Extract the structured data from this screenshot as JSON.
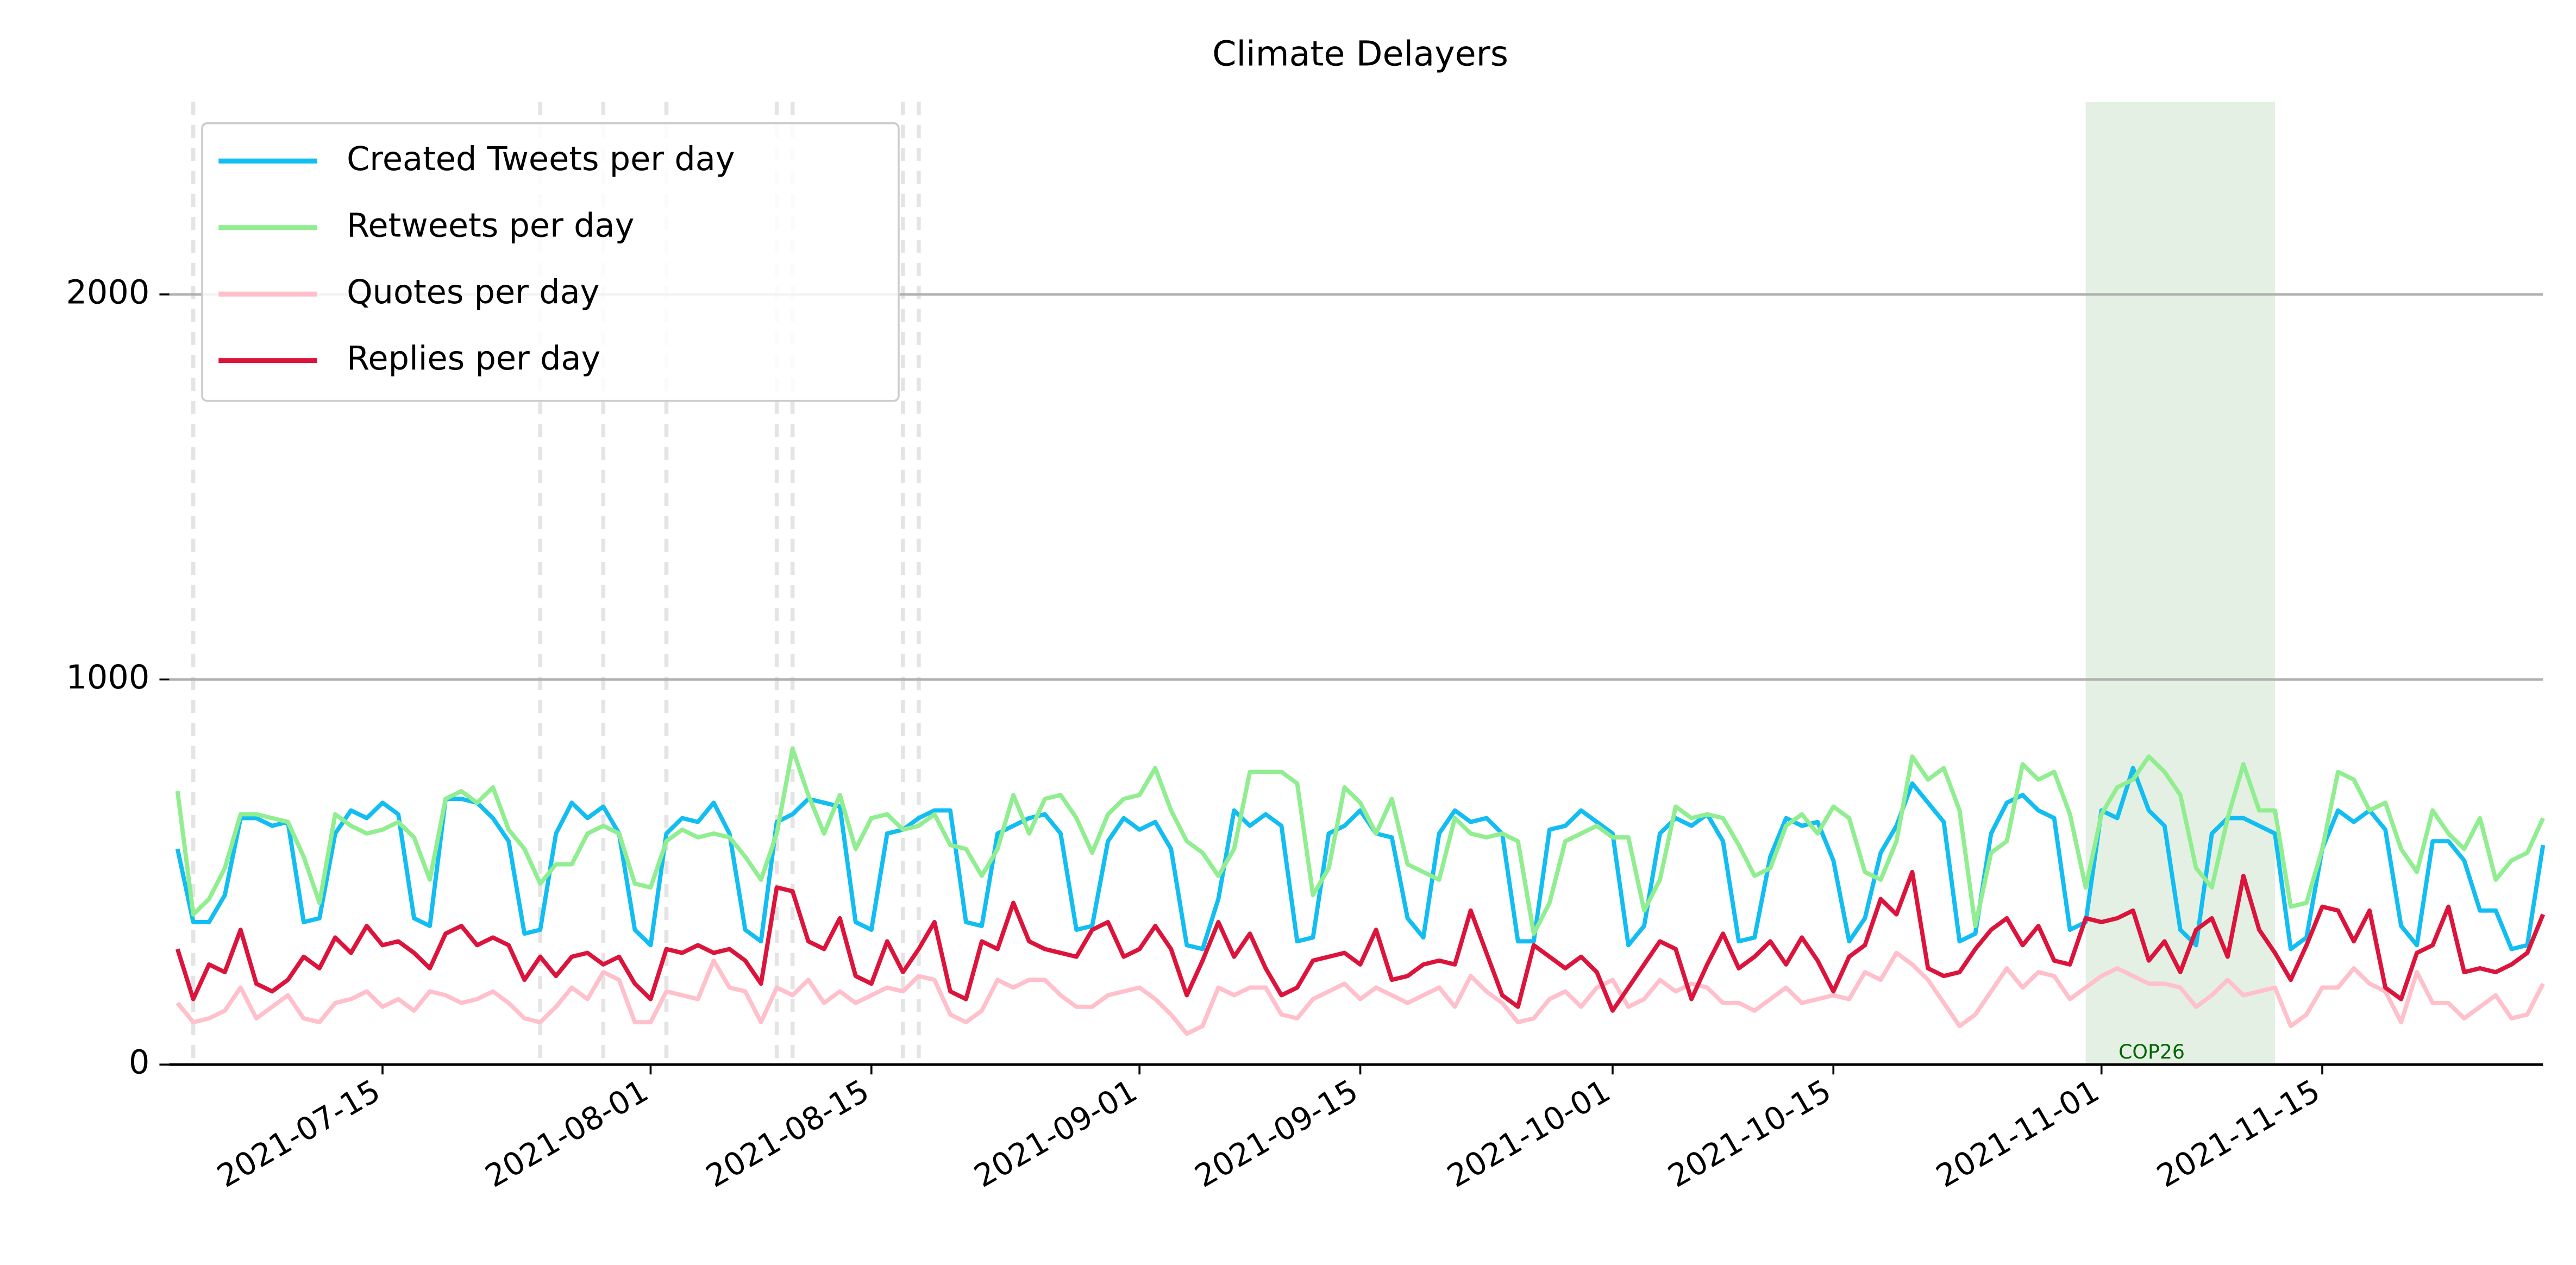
{
  "chart_data": {
    "type": "line",
    "title": "Climate Delayers",
    "x": [
      "2021-07-02",
      "2021-07-03",
      "2021-07-04",
      "2021-07-05",
      "2021-07-06",
      "2021-07-07",
      "2021-07-08",
      "2021-07-09",
      "2021-07-10",
      "2021-07-11",
      "2021-07-12",
      "2021-07-13",
      "2021-07-14",
      "2021-07-15",
      "2021-07-16",
      "2021-07-17",
      "2021-07-18",
      "2021-07-19",
      "2021-07-20",
      "2021-07-21",
      "2021-07-22",
      "2021-07-23",
      "2021-07-24",
      "2021-07-25",
      "2021-07-26",
      "2021-07-27",
      "2021-07-28",
      "2021-07-29",
      "2021-07-30",
      "2021-07-31",
      "2021-08-01",
      "2021-08-02",
      "2021-08-03",
      "2021-08-04",
      "2021-08-05",
      "2021-08-06",
      "2021-08-07",
      "2021-08-08",
      "2021-08-09",
      "2021-08-10",
      "2021-08-11",
      "2021-08-12",
      "2021-08-13",
      "2021-08-14",
      "2021-08-15",
      "2021-08-16",
      "2021-08-17",
      "2021-08-18",
      "2021-08-19",
      "2021-08-20",
      "2021-08-21",
      "2021-08-22",
      "2021-08-23",
      "2021-08-24",
      "2021-08-25",
      "2021-08-26",
      "2021-08-27",
      "2021-08-28",
      "2021-08-29",
      "2021-08-30",
      "2021-08-31",
      "2021-09-01",
      "2021-09-02",
      "2021-09-03",
      "2021-09-04",
      "2021-09-05",
      "2021-09-06",
      "2021-09-07",
      "2021-09-08",
      "2021-09-09",
      "2021-09-10",
      "2021-09-11",
      "2021-09-12",
      "2021-09-13",
      "2021-09-14",
      "2021-09-15",
      "2021-09-16",
      "2021-09-17",
      "2021-09-18",
      "2021-09-19",
      "2021-09-20",
      "2021-09-21",
      "2021-09-22",
      "2021-09-23",
      "2021-09-24",
      "2021-09-25",
      "2021-09-26",
      "2021-09-27",
      "2021-09-28",
      "2021-09-29",
      "2021-09-30",
      "2021-10-01",
      "2021-10-02",
      "2021-10-03",
      "2021-10-04",
      "2021-10-05",
      "2021-10-06",
      "2021-10-07",
      "2021-10-08",
      "2021-10-09",
      "2021-10-10",
      "2021-10-11",
      "2021-10-12",
      "2021-10-13",
      "2021-10-14",
      "2021-10-15",
      "2021-10-16",
      "2021-10-17",
      "2021-10-18",
      "2021-10-19",
      "2021-10-20",
      "2021-10-21",
      "2021-10-22",
      "2021-10-23",
      "2021-10-24",
      "2021-10-25",
      "2021-10-26",
      "2021-10-27",
      "2021-10-28",
      "2021-10-29",
      "2021-10-30",
      "2021-10-31",
      "2021-11-01",
      "2021-11-02",
      "2021-11-03",
      "2021-11-04",
      "2021-11-05",
      "2021-11-06",
      "2021-11-07",
      "2021-11-08",
      "2021-11-09",
      "2021-11-10",
      "2021-11-11",
      "2021-11-12",
      "2021-11-13",
      "2021-11-14",
      "2021-11-15",
      "2021-11-16",
      "2021-11-17",
      "2021-11-18",
      "2021-11-19",
      "2021-11-20",
      "2021-11-21",
      "2021-11-22",
      "2021-11-23",
      "2021-11-24",
      "2021-11-25",
      "2021-11-26",
      "2021-11-27",
      "2021-11-28",
      "2021-11-29"
    ],
    "series": [
      {
        "name": "Created Tweets per day",
        "color": "#12bdf2",
        "values": [
          560,
          370,
          370,
          440,
          640,
          640,
          620,
          630,
          370,
          380,
          600,
          660,
          640,
          680,
          650,
          380,
          360,
          690,
          690,
          680,
          640,
          580,
          340,
          350,
          600,
          680,
          640,
          670,
          600,
          350,
          310,
          600,
          640,
          630,
          680,
          600,
          350,
          320,
          630,
          650,
          690,
          680,
          670,
          370,
          350,
          600,
          610,
          640,
          660,
          660,
          370,
          360,
          600,
          620,
          640,
          650,
          600,
          350,
          360,
          580,
          640,
          610,
          630,
          560,
          310,
          300,
          430,
          660,
          620,
          650,
          620,
          320,
          330,
          600,
          620,
          660,
          600,
          590,
          380,
          330,
          600,
          660,
          630,
          640,
          600,
          320,
          320,
          610,
          620,
          660,
          630,
          600,
          310,
          360,
          600,
          640,
          620,
          650,
          580,
          320,
          330,
          540,
          640,
          620,
          630,
          530,
          320,
          380,
          550,
          620,
          730,
          680,
          630,
          320,
          340,
          600,
          680,
          700,
          660,
          640,
          350,
          370,
          660,
          640,
          770,
          660,
          620,
          350,
          310,
          600,
          640,
          640,
          620,
          600,
          300,
          330,
          560,
          660,
          630,
          660,
          610,
          360,
          310,
          580,
          580,
          530,
          400,
          400,
          300,
          310,
          570
        ]
      },
      {
        "name": "Retweets per day",
        "color": "#90ee90",
        "values": [
          710,
          390,
          430,
          510,
          650,
          650,
          640,
          630,
          540,
          420,
          650,
          620,
          600,
          610,
          630,
          590,
          480,
          690,
          710,
          680,
          720,
          610,
          560,
          470,
          520,
          520,
          600,
          620,
          600,
          470,
          460,
          580,
          610,
          590,
          600,
          590,
          540,
          480,
          600,
          820,
          700,
          600,
          700,
          560,
          640,
          650,
          610,
          620,
          650,
          570,
          560,
          490,
          560,
          700,
          600,
          690,
          700,
          640,
          550,
          650,
          690,
          700,
          770,
          660,
          580,
          550,
          490,
          560,
          760,
          760,
          760,
          730,
          440,
          510,
          720,
          680,
          600,
          690,
          520,
          500,
          480,
          640,
          600,
          590,
          600,
          580,
          340,
          420,
          580,
          600,
          620,
          590,
          590,
          400,
          480,
          670,
          640,
          650,
          640,
          570,
          490,
          510,
          620,
          650,
          600,
          670,
          640,
          500,
          480,
          580,
          800,
          740,
          770,
          660,
          360,
          550,
          580,
          780,
          740,
          760,
          650,
          460,
          650,
          720,
          740,
          800,
          760,
          700,
          510,
          460,
          640,
          780,
          660,
          660,
          410,
          420,
          560,
          760,
          740,
          660,
          680,
          560,
          500,
          660,
          600,
          560,
          640,
          480,
          530,
          550,
          640
        ]
      },
      {
        "name": "Quotes per day",
        "color": "#ffc0cb",
        "values": [
          160,
          110,
          120,
          140,
          200,
          120,
          150,
          180,
          120,
          110,
          160,
          170,
          190,
          150,
          170,
          140,
          190,
          180,
          160,
          170,
          190,
          160,
          120,
          110,
          150,
          200,
          170,
          240,
          220,
          110,
          110,
          190,
          180,
          170,
          270,
          200,
          190,
          110,
          200,
          180,
          220,
          160,
          190,
          160,
          180,
          200,
          190,
          230,
          220,
          130,
          110,
          140,
          220,
          200,
          220,
          220,
          180,
          150,
          150,
          180,
          190,
          200,
          170,
          130,
          80,
          100,
          200,
          180,
          200,
          200,
          130,
          120,
          170,
          190,
          210,
          170,
          200,
          180,
          160,
          180,
          200,
          150,
          230,
          190,
          160,
          110,
          120,
          170,
          190,
          150,
          200,
          220,
          150,
          170,
          220,
          190,
          210,
          200,
          160,
          160,
          140,
          170,
          200,
          160,
          170,
          180,
          170,
          240,
          220,
          290,
          260,
          220,
          160,
          100,
          130,
          190,
          250,
          200,
          240,
          230,
          170,
          200,
          230,
          250,
          230,
          210,
          210,
          200,
          150,
          180,
          220,
          180,
          190,
          200,
          100,
          130,
          200,
          200,
          250,
          210,
          190,
          110,
          240,
          160,
          160,
          120,
          150,
          180,
          120,
          130,
          210
        ]
      },
      {
        "name": "Replies per day",
        "color": "#dc143c",
        "values": [
          300,
          170,
          260,
          240,
          350,
          210,
          190,
          220,
          280,
          250,
          330,
          290,
          360,
          310,
          320,
          290,
          250,
          340,
          360,
          310,
          330,
          310,
          220,
          280,
          230,
          280,
          290,
          260,
          280,
          210,
          170,
          300,
          290,
          310,
          290,
          300,
          270,
          210,
          460,
          450,
          320,
          300,
          380,
          230,
          210,
          320,
          240,
          300,
          370,
          190,
          170,
          320,
          300,
          420,
          320,
          300,
          290,
          280,
          350,
          370,
          280,
          300,
          360,
          300,
          180,
          270,
          370,
          280,
          340,
          250,
          180,
          200,
          270,
          280,
          290,
          260,
          350,
          220,
          230,
          260,
          270,
          260,
          400,
          290,
          180,
          150,
          310,
          280,
          250,
          280,
          240,
          140,
          200,
          260,
          320,
          300,
          170,
          260,
          340,
          250,
          280,
          320,
          260,
          330,
          270,
          190,
          280,
          310,
          430,
          390,
          500,
          250,
          230,
          240,
          300,
          350,
          380,
          310,
          360,
          270,
          260,
          380,
          370,
          380,
          400,
          270,
          320,
          240,
          350,
          380,
          280,
          490,
          350,
          290,
          220,
          310,
          410,
          400,
          320,
          400,
          200,
          170,
          290,
          310,
          410,
          240,
          250,
          240,
          260,
          290,
          390
        ]
      }
    ],
    "xlim": [
      "2021-07-02",
      "2021-11-29"
    ],
    "xticks": [
      "2021-07-15",
      "2021-08-01",
      "2021-08-15",
      "2021-09-01",
      "2021-09-15",
      "2021-10-01",
      "2021-10-15",
      "2021-11-01",
      "2021-11-15"
    ],
    "ylim": [
      0,
      2500
    ],
    "yticks": [
      0,
      1000,
      2000
    ],
    "grid": true,
    "legend": "upper left",
    "spans": [
      {
        "start": "2021-10-31",
        "end": "2021-11-12",
        "label": "COP26",
        "color": "#e3f0e3"
      }
    ],
    "vlines": [
      "2021-07-03",
      "2021-07-25",
      "2021-07-29",
      "2021-08-02",
      "2021-08-09",
      "2021-08-10",
      "2021-08-17",
      "2021-08-18"
    ]
  }
}
